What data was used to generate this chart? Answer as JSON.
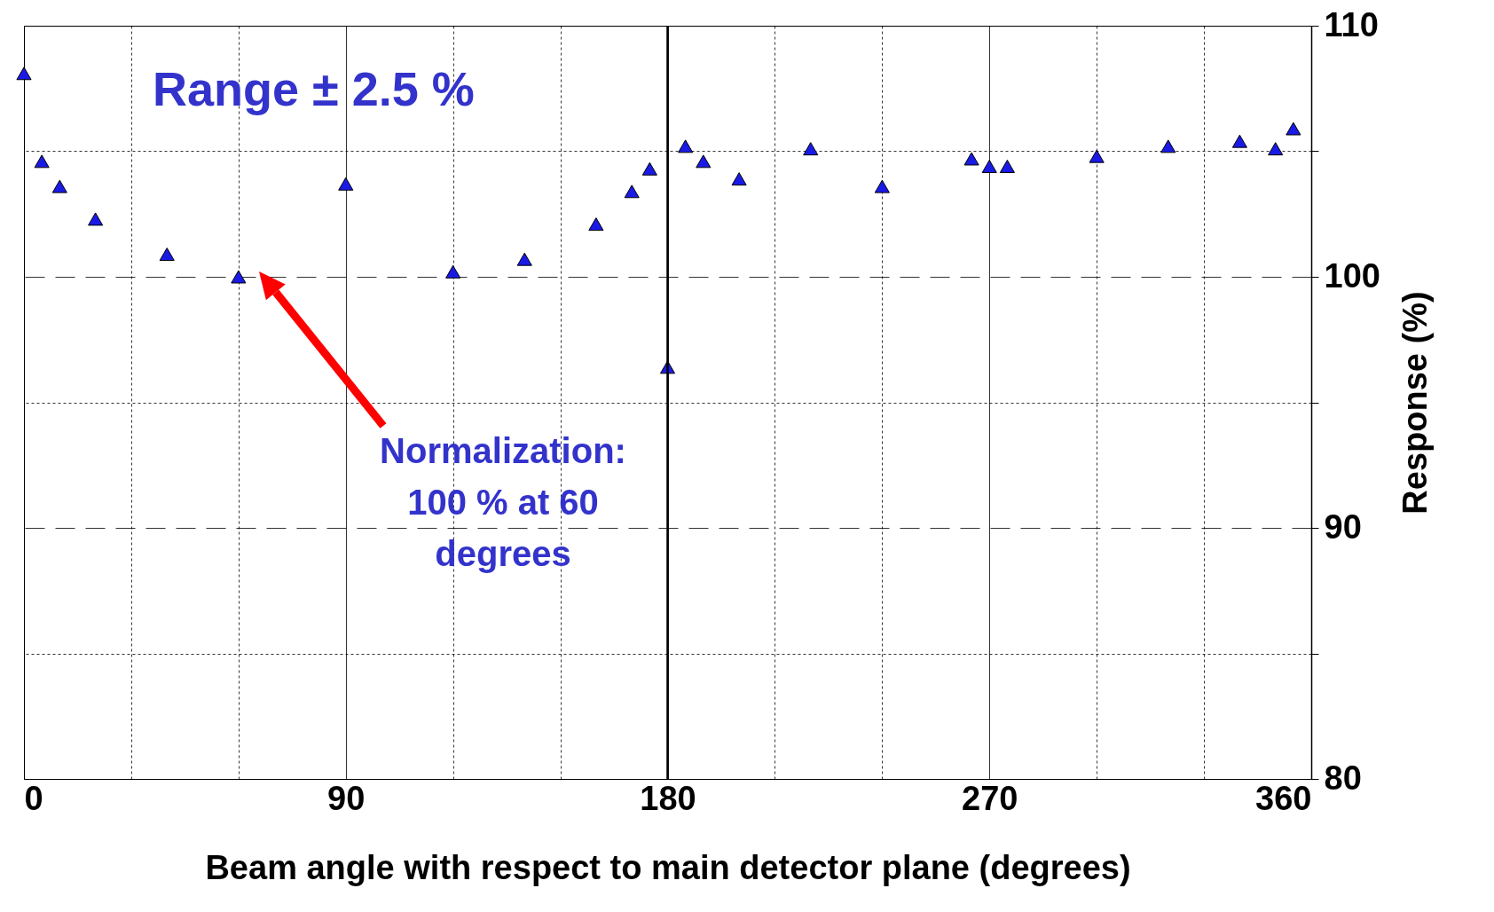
{
  "chart_data": {
    "type": "scatter",
    "xlabel": "Beam angle with respect to main detector plane (degrees)",
    "ylabel": "Response (%)",
    "x": [
      0,
      5,
      10,
      20,
      40,
      60,
      90,
      120,
      140,
      160,
      170,
      175,
      180,
      185,
      190,
      200,
      220,
      240,
      265,
      270,
      275,
      300,
      320,
      340,
      350,
      355
    ],
    "series": [
      {
        "color": "#1a1ae6",
        "values": [
          108.1,
          104.6,
          103.6,
          102.3,
          100.9,
          100.0,
          103.7,
          100.2,
          100.7,
          102.1,
          103.4,
          104.3,
          96.4,
          105.2,
          104.6,
          103.9,
          105.1,
          103.6,
          104.7,
          104.4,
          104.4,
          104.8,
          105.2,
          105.4,
          105.1,
          105.9
        ]
      }
    ],
    "marker": "triangle",
    "grid": true,
    "xlim": [
      0,
      360
    ],
    "xticks": [
      0,
      {
        "value": 30,
        "label": null
      },
      {
        "value": 60,
        "label": null
      },
      90,
      {
        "value": 120,
        "label": null
      },
      {
        "value": 150,
        "label": null
      },
      180,
      {
        "value": 210,
        "label": null
      },
      {
        "value": 240,
        "label": null
      },
      270,
      {
        "value": 300,
        "label": null
      },
      {
        "value": 330,
        "label": null
      },
      360
    ],
    "ylim": [
      80,
      110
    ],
    "yticks": [
      80,
      {
        "value": 85,
        "label": null
      },
      90,
      {
        "value": 95,
        "label": null
      },
      100,
      {
        "value": 105,
        "label": null
      },
      110
    ],
    "ref_lines": [
      {
        "axis": "x",
        "value": 180,
        "color": "#000000"
      }
    ],
    "annotations": [
      "Range ± 2.5 %",
      "Normalization: 100 % at 60 degrees"
    ]
  }
}
